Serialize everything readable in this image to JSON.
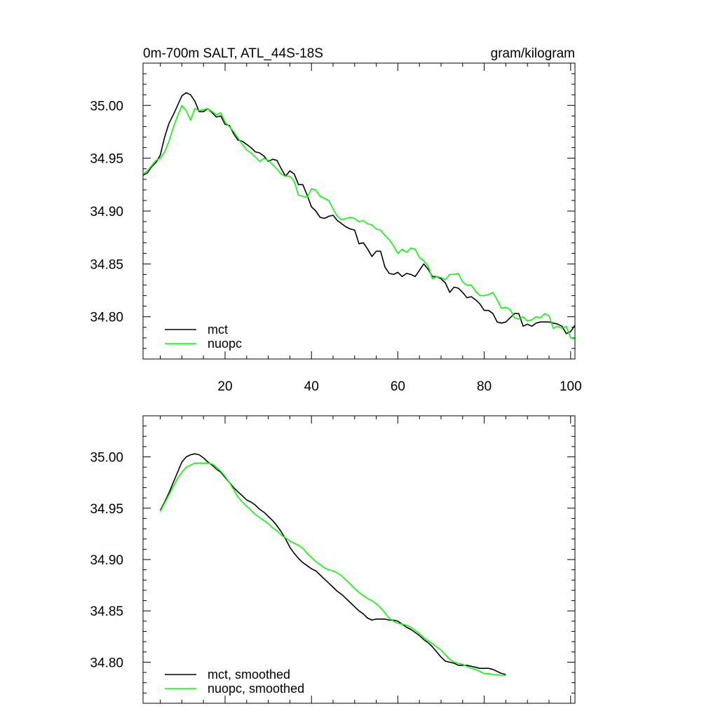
{
  "chart_data": [
    {
      "type": "line",
      "title_left": "0m-700m SALT, ATL_44S-18S",
      "title_right": "gram/kilogram",
      "xlabel": "",
      "ylabel": "",
      "xlim": [
        1,
        101
      ],
      "ylim": [
        34.76,
        35.04
      ],
      "x_ticks": [
        20,
        40,
        60,
        80,
        100
      ],
      "x_tick_labels": [
        "20",
        "40",
        "60",
        "80",
        "100"
      ],
      "y_ticks": [
        35.0,
        34.95,
        34.9,
        34.85,
        34.8
      ],
      "y_tick_labels": [
        "35.00",
        "34.95",
        "34.90",
        "34.85",
        "34.80"
      ],
      "legend_position": "bottom-left",
      "series": [
        {
          "name": "mct",
          "color": "#000000",
          "x_start": 1,
          "x_step": 1,
          "values": [
            34.934,
            34.936,
            34.942,
            34.946,
            34.953,
            34.97,
            34.983,
            34.991,
            35.0,
            35.009,
            35.012,
            35.01,
            35.004,
            34.994,
            34.994,
            34.997,
            34.993,
            34.989,
            34.99,
            34.982,
            34.981,
            34.973,
            34.967,
            34.966,
            34.963,
            34.96,
            34.956,
            34.955,
            34.952,
            34.947,
            34.949,
            34.948,
            34.94,
            34.933,
            34.938,
            34.935,
            34.925,
            34.925,
            34.915,
            34.904,
            34.9,
            34.894,
            34.893,
            34.895,
            34.896,
            34.891,
            34.888,
            34.885,
            34.883,
            34.882,
            34.869,
            34.87,
            34.864,
            34.857,
            34.862,
            34.862,
            34.847,
            34.841,
            34.84,
            34.842,
            34.838,
            34.841,
            34.84,
            34.838,
            34.844,
            34.85,
            34.845,
            34.838,
            34.838,
            34.836,
            34.832,
            34.823,
            34.828,
            34.827,
            34.823,
            34.818,
            34.819,
            34.816,
            34.812,
            34.806,
            34.806,
            34.803,
            34.795,
            34.794,
            34.795,
            34.799,
            34.803,
            34.803,
            34.791,
            34.793,
            34.791,
            34.794,
            34.795,
            34.795,
            34.795,
            34.794,
            34.793,
            34.791,
            34.784,
            34.786,
            34.792
          ]
        },
        {
          "name": "nuopc",
          "color": "#00ff00",
          "x_start": 1,
          "x_step": 1,
          "values": [
            34.935,
            34.938,
            34.943,
            34.948,
            34.95,
            34.956,
            34.966,
            34.979,
            34.99,
            35.0,
            34.995,
            34.986,
            34.997,
            34.995,
            34.996,
            34.997,
            34.994,
            34.991,
            34.993,
            34.984,
            34.98,
            34.975,
            34.969,
            34.963,
            34.958,
            34.955,
            34.951,
            34.947,
            34.95,
            34.948,
            34.944,
            34.94,
            34.935,
            34.933,
            34.933,
            34.928,
            34.915,
            34.914,
            34.913,
            34.921,
            34.92,
            34.914,
            34.912,
            34.91,
            34.902,
            34.895,
            34.892,
            34.893,
            34.894,
            34.893,
            34.89,
            34.891,
            34.888,
            34.887,
            34.883,
            34.882,
            34.877,
            34.873,
            34.867,
            34.86,
            34.864,
            34.861,
            34.865,
            34.864,
            34.856,
            34.853,
            34.848,
            34.836,
            34.838,
            34.837,
            34.835,
            34.84,
            34.84,
            34.841,
            34.833,
            34.83,
            34.83,
            34.824,
            34.82,
            34.82,
            34.821,
            34.823,
            34.816,
            34.808,
            34.809,
            34.807,
            34.799,
            34.798,
            34.8,
            34.796,
            34.797,
            34.8,
            34.799,
            34.803,
            34.801,
            34.789,
            34.791,
            34.789,
            34.791,
            34.78,
            34.779
          ]
        }
      ]
    },
    {
      "type": "line",
      "title_left": "",
      "title_right": "",
      "xlabel": "",
      "ylabel": "",
      "xlim": [
        1,
        101
      ],
      "ylim": [
        34.76,
        35.04
      ],
      "x_ticks": [
        20,
        40,
        60,
        80,
        100
      ],
      "x_tick_labels": [],
      "y_ticks": [
        35.0,
        34.95,
        34.9,
        34.85,
        34.8
      ],
      "y_tick_labels": [
        "35.00",
        "34.95",
        "34.90",
        "34.85",
        "34.80"
      ],
      "legend_position": "bottom-left",
      "series": [
        {
          "name": "mct, smoothed",
          "color": "#000000",
          "x_start": 5,
          "x_step": 1,
          "values": [
            34.948,
            34.956,
            34.965,
            34.975,
            34.985,
            34.995,
            35.0,
            35.002,
            35.003,
            35.002,
            34.999,
            34.995,
            34.992,
            34.988,
            34.985,
            34.98,
            34.975,
            34.97,
            34.966,
            34.962,
            34.958,
            34.956,
            34.953,
            34.949,
            34.946,
            34.942,
            34.938,
            34.933,
            34.927,
            34.92,
            34.912,
            34.906,
            34.901,
            34.897,
            34.894,
            34.891,
            34.889,
            34.885,
            34.881,
            34.877,
            34.873,
            34.869,
            34.866,
            34.862,
            34.858,
            34.854,
            34.85,
            34.847,
            34.843,
            34.841,
            34.842,
            34.842,
            34.842,
            34.841,
            34.841,
            34.84,
            34.837,
            34.834,
            34.832,
            34.829,
            34.826,
            34.822,
            34.819,
            34.815,
            34.81,
            34.805,
            34.801,
            34.8,
            34.799,
            34.797,
            34.797,
            34.797,
            34.796,
            34.795,
            34.794,
            34.794,
            34.794,
            34.793,
            34.791,
            34.789,
            34.788
          ]
        },
        {
          "name": "nuopc, smoothed",
          "color": "#00ff00",
          "x_start": 5,
          "x_step": 1,
          "values": [
            34.947,
            34.955,
            34.963,
            34.971,
            34.979,
            34.985,
            34.99,
            34.992,
            34.994,
            34.994,
            34.994,
            34.994,
            34.993,
            34.99,
            34.986,
            34.981,
            34.975,
            34.968,
            34.961,
            34.956,
            34.952,
            34.948,
            34.944,
            34.941,
            34.938,
            34.935,
            34.931,
            34.928,
            34.924,
            34.921,
            34.918,
            34.916,
            34.914,
            34.911,
            34.906,
            34.902,
            34.898,
            34.895,
            34.892,
            34.89,
            34.889,
            34.887,
            34.884,
            34.88,
            34.876,
            34.872,
            34.868,
            34.865,
            34.862,
            34.86,
            34.857,
            34.853,
            34.848,
            34.843,
            34.84,
            34.838,
            34.837,
            34.836,
            34.834,
            34.831,
            34.828,
            34.824,
            34.821,
            34.818,
            34.815,
            34.812,
            34.807,
            34.803,
            34.8,
            34.799,
            34.798,
            34.796,
            34.794,
            34.793,
            34.791,
            34.789,
            34.789,
            34.788,
            34.788,
            34.787,
            34.787
          ]
        }
      ]
    }
  ]
}
